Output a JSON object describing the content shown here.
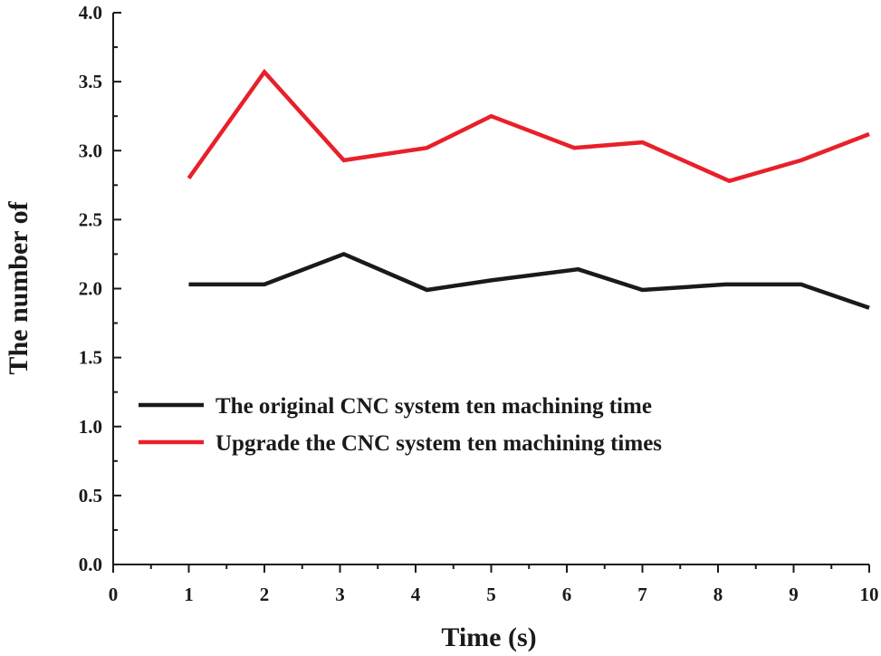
{
  "chart_data": {
    "type": "line",
    "xlabel": "Time (s)",
    "ylabel": "The number of",
    "xlim": [
      0,
      10
    ],
    "ylim": [
      0,
      4.0
    ],
    "x_ticks": [
      "0",
      "1",
      "2",
      "3",
      "4",
      "5",
      "6",
      "7",
      "8",
      "9",
      "10"
    ],
    "y_ticks": [
      "0.0",
      "0.5",
      "1.0",
      "1.5",
      "2.0",
      "2.5",
      "3.0",
      "3.5",
      "4.0"
    ],
    "grid": false,
    "legend_position": "lower-left",
    "series": [
      {
        "name": "The original CNC system ten machining time",
        "color": "#1a1a1a",
        "x": [
          1,
          2,
          3.05,
          4.15,
          5,
          6.15,
          7,
          8.1,
          9.1,
          10
        ],
        "y": [
          2.03,
          2.03,
          2.25,
          1.99,
          2.06,
          2.14,
          1.99,
          2.03,
          2.03,
          1.86
        ]
      },
      {
        "name": "Upgrade the CNC system ten machining times",
        "color": "#e8202a",
        "x": [
          1,
          2,
          3.05,
          4.15,
          5,
          6.1,
          7,
          8.15,
          9.1,
          10
        ],
        "y": [
          2.8,
          3.57,
          2.93,
          3.02,
          3.25,
          3.02,
          3.06,
          2.78,
          2.93,
          3.12
        ]
      }
    ]
  }
}
